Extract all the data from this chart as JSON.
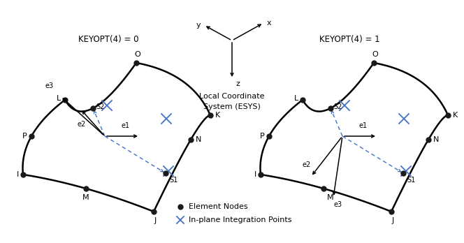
{
  "bg_color": "#ffffff",
  "black": "#000000",
  "blue": "#4472C4",
  "left_label": "KEYOPT(4) = 0",
  "right_label": "KEYOPT(4) = 1",
  "center_label1": "Local Coordinate",
  "center_label2": "System (ESYS)",
  "legend_node": "Element Nodes",
  "legend_intpt": "In-plane Integration Points",
  "figsize": [
    6.64,
    3.48
  ],
  "dpi": 100
}
